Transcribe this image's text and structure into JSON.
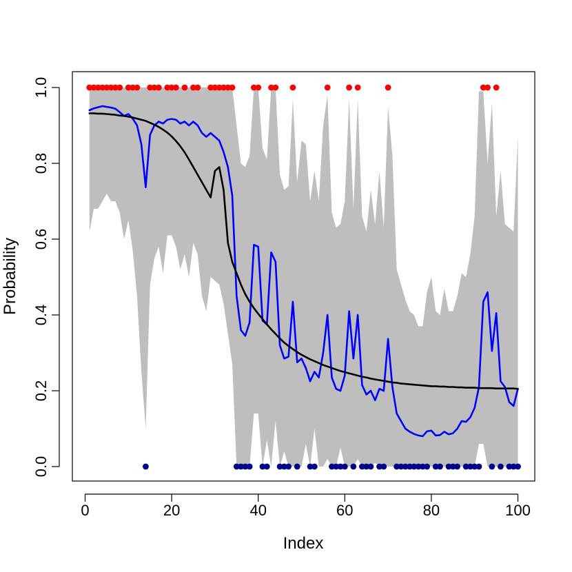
{
  "chart_data": {
    "type": "line",
    "title": "",
    "xlabel": "Index",
    "ylabel": "Probability",
    "xlim": [
      0,
      100
    ],
    "ylim": [
      0,
      1
    ],
    "x_ticks": [
      0,
      20,
      40,
      60,
      80,
      100
    ],
    "y_ticks": [
      0.0,
      0.2,
      0.4,
      0.6,
      0.8,
      1.0
    ],
    "x_tick_labels": [
      "0",
      "20",
      "40",
      "60",
      "80",
      "100"
    ],
    "y_tick_labels": [
      "0.0",
      "0.2",
      "0.4",
      "0.6",
      "0.8",
      "1.0"
    ],
    "grid": false,
    "band": {
      "name": "interval",
      "color": "#bebebe",
      "x": [
        1,
        2,
        3,
        4,
        5,
        6,
        7,
        8,
        9,
        10,
        11,
        12,
        13,
        14,
        15,
        16,
        17,
        18,
        19,
        20,
        21,
        22,
        23,
        24,
        25,
        26,
        27,
        28,
        29,
        30,
        31,
        32,
        33,
        34,
        35,
        36,
        37,
        38,
        39,
        40,
        41,
        42,
        43,
        44,
        45,
        46,
        47,
        48,
        49,
        50,
        51,
        52,
        53,
        54,
        55,
        56,
        57,
        58,
        59,
        60,
        61,
        62,
        63,
        64,
        65,
        66,
        67,
        68,
        69,
        70,
        71,
        72,
        73,
        74,
        75,
        76,
        77,
        78,
        79,
        80,
        81,
        82,
        83,
        84,
        85,
        86,
        87,
        88,
        89,
        90,
        91,
        92,
        93,
        94,
        95,
        96,
        97,
        98,
        99,
        100
      ],
      "upper": [
        1.0,
        1.0,
        1.0,
        1.0,
        1.0,
        1.0,
        1.0,
        1.0,
        1.0,
        1.0,
        1.0,
        1.0,
        1.0,
        1.0,
        1.0,
        1.0,
        1.0,
        1.0,
        1.0,
        1.0,
        1.0,
        1.0,
        1.0,
        1.0,
        1.0,
        1.0,
        1.0,
        1.0,
        1.0,
        1.0,
        1.0,
        1.0,
        1.0,
        1.0,
        0.9,
        0.8,
        0.79,
        0.82,
        1.0,
        1.0,
        0.84,
        0.81,
        1.0,
        1.0,
        0.77,
        0.73,
        0.74,
        0.97,
        0.75,
        0.86,
        0.85,
        0.7,
        0.78,
        0.7,
        0.9,
        0.98,
        0.67,
        0.63,
        0.64,
        0.7,
        0.97,
        0.68,
        0.97,
        0.66,
        0.62,
        0.73,
        0.64,
        0.78,
        0.63,
        0.95,
        0.82,
        0.52,
        0.48,
        0.44,
        0.41,
        0.4,
        0.37,
        0.37,
        0.46,
        0.5,
        0.41,
        0.4,
        0.47,
        0.41,
        0.41,
        0.45,
        0.51,
        0.5,
        0.56,
        0.66,
        0.99,
        0.99,
        0.8,
        0.96,
        0.66,
        0.78,
        0.64,
        0.63,
        0.62,
        0.87
      ],
      "lower": [
        0.62,
        0.68,
        0.68,
        0.7,
        0.72,
        0.7,
        0.7,
        0.67,
        0.6,
        0.65,
        0.57,
        0.45,
        0.25,
        0.1,
        0.48,
        0.55,
        0.58,
        0.51,
        0.61,
        0.61,
        0.58,
        0.52,
        0.56,
        0.5,
        0.59,
        0.56,
        0.45,
        0.41,
        0.5,
        0.49,
        0.48,
        0.43,
        0.35,
        0.27,
        0.0,
        0.0,
        0.0,
        0.0,
        0.14,
        0.14,
        0.0,
        0.07,
        0.0,
        0.12,
        0.0,
        0.04,
        0.0,
        0.0,
        0.0,
        0.0,
        0.06,
        0.0,
        0.1,
        0.0,
        0.0,
        0.02,
        0.0,
        0.0,
        0.05,
        0.0,
        0.0,
        0.0,
        0.02,
        0.0,
        0.0,
        0.0,
        0.01,
        0.0,
        0.0,
        0.0,
        0.0,
        0.0,
        0.0,
        0.0,
        0.0,
        0.0,
        0.0,
        0.0,
        0.0,
        0.0,
        0.0,
        0.0,
        0.0,
        0.0,
        0.0,
        0.0,
        0.0,
        0.0,
        0.0,
        0.0,
        0.06,
        0.06,
        0.0,
        0.0,
        0.0,
        0.0,
        0.0,
        0.0,
        0.0,
        0.0
      ]
    },
    "series": [
      {
        "color": "#0000ff",
        "x": [
          1,
          2,
          3,
          4,
          5,
          6,
          7,
          8,
          9,
          10,
          11,
          12,
          13,
          14,
          15,
          16,
          17,
          18,
          19,
          20,
          21,
          22,
          23,
          24,
          25,
          26,
          27,
          28,
          29,
          30,
          31,
          32,
          33,
          34,
          35,
          36,
          37,
          38,
          39,
          40,
          41,
          42,
          43,
          44,
          45,
          46,
          47,
          48,
          49,
          50,
          51,
          52,
          53,
          54,
          55,
          56,
          57,
          58,
          59,
          60,
          61,
          62,
          63,
          64,
          65,
          66,
          67,
          68,
          69,
          70,
          71,
          72,
          73,
          74,
          75,
          76,
          77,
          78,
          79,
          80,
          81,
          82,
          83,
          84,
          85,
          86,
          87,
          88,
          89,
          90,
          91,
          92,
          93,
          94,
          95,
          96,
          97,
          98,
          99,
          100
        ],
        "values": [
          0.94,
          0.945,
          0.948,
          0.951,
          0.949,
          0.947,
          0.944,
          0.935,
          0.925,
          0.93,
          0.918,
          0.9,
          0.85,
          0.737,
          0.875,
          0.9,
          0.91,
          0.905,
          0.915,
          0.917,
          0.915,
          0.905,
          0.91,
          0.9,
          0.91,
          0.9,
          0.88,
          0.87,
          0.88,
          0.87,
          0.86,
          0.83,
          0.79,
          0.715,
          0.45,
          0.36,
          0.345,
          0.38,
          0.585,
          0.58,
          0.385,
          0.375,
          0.565,
          0.54,
          0.32,
          0.285,
          0.29,
          0.435,
          0.275,
          0.285,
          0.26,
          0.225,
          0.25,
          0.235,
          0.3,
          0.4,
          0.235,
          0.205,
          0.2,
          0.24,
          0.41,
          0.285,
          0.4,
          0.215,
          0.19,
          0.2,
          0.175,
          0.205,
          0.2,
          0.337,
          0.21,
          0.14,
          0.12,
          0.1,
          0.092,
          0.086,
          0.082,
          0.08,
          0.093,
          0.095,
          0.082,
          0.083,
          0.092,
          0.085,
          0.088,
          0.1,
          0.12,
          0.118,
          0.13,
          0.155,
          0.21,
          0.435,
          0.46,
          0.305,
          0.405,
          0.225,
          0.21,
          0.17,
          0.16,
          0.205
        ]
      },
      {
        "color": "#000000",
        "x": [
          1,
          2,
          3,
          4,
          5,
          6,
          7,
          8,
          9,
          10,
          11,
          12,
          13,
          14,
          15,
          16,
          17,
          18,
          19,
          20,
          21,
          22,
          23,
          24,
          25,
          26,
          27,
          28,
          29,
          30,
          31,
          32,
          33,
          34,
          35,
          36,
          37,
          38,
          39,
          40,
          41,
          42,
          43,
          44,
          45,
          46,
          47,
          48,
          49,
          50,
          51,
          52,
          53,
          54,
          55,
          56,
          57,
          58,
          59,
          60,
          61,
          62,
          63,
          64,
          65,
          66,
          67,
          68,
          69,
          70,
          71,
          72,
          73,
          74,
          75,
          76,
          77,
          78,
          79,
          80,
          81,
          82,
          83,
          84,
          85,
          86,
          87,
          88,
          89,
          90,
          91,
          92,
          93,
          94,
          95,
          96,
          97,
          98,
          99,
          100
        ],
        "values": [
          0.932,
          0.932,
          0.931,
          0.931,
          0.93,
          0.929,
          0.928,
          0.926,
          0.925,
          0.923,
          0.921,
          0.918,
          0.915,
          0.912,
          0.907,
          0.902,
          0.896,
          0.889,
          0.881,
          0.871,
          0.859,
          0.845,
          0.829,
          0.81,
          0.79,
          0.77,
          0.75,
          0.73,
          0.71,
          0.78,
          0.79,
          0.73,
          0.59,
          0.54,
          0.51,
          0.48,
          0.455,
          0.435,
          0.418,
          0.403,
          0.389,
          0.375,
          0.362,
          0.35,
          0.338,
          0.327,
          0.318,
          0.31,
          0.302,
          0.295,
          0.289,
          0.283,
          0.278,
          0.273,
          0.268,
          0.264,
          0.26,
          0.256,
          0.252,
          0.249,
          0.246,
          0.243,
          0.24,
          0.237,
          0.235,
          0.232,
          0.23,
          0.228,
          0.226,
          0.224,
          0.222,
          0.221,
          0.219,
          0.218,
          0.217,
          0.216,
          0.215,
          0.214,
          0.213,
          0.212,
          0.212,
          0.211,
          0.211,
          0.21,
          0.21,
          0.209,
          0.209,
          0.208,
          0.208,
          0.208,
          0.207,
          0.207,
          0.207,
          0.207,
          0.206,
          0.206,
          0.206,
          0.206,
          0.206,
          0.205
        ]
      }
    ],
    "points": [
      {
        "color": "#ff0000",
        "y": 1.0,
        "x": [
          1,
          2,
          3,
          4,
          5,
          6,
          7,
          8,
          10,
          11,
          12,
          15,
          16,
          17,
          19,
          20,
          21,
          23,
          25,
          26,
          29,
          30,
          31,
          32,
          33,
          34,
          39,
          40,
          43,
          44,
          48,
          56,
          61,
          63,
          70,
          92,
          93,
          95
        ]
      },
      {
        "color": "#00008b",
        "y": 0.0,
        "x": [
          14,
          35,
          36,
          37,
          38,
          41,
          42,
          45,
          46,
          47,
          49,
          52,
          53,
          57,
          58,
          59,
          60,
          62,
          64,
          65,
          66,
          68,
          69,
          72,
          73,
          74,
          75,
          76,
          77,
          78,
          79,
          81,
          82,
          84,
          85,
          86,
          88,
          89,
          90,
          91,
          94,
          96,
          98,
          99,
          100
        ]
      }
    ]
  }
}
